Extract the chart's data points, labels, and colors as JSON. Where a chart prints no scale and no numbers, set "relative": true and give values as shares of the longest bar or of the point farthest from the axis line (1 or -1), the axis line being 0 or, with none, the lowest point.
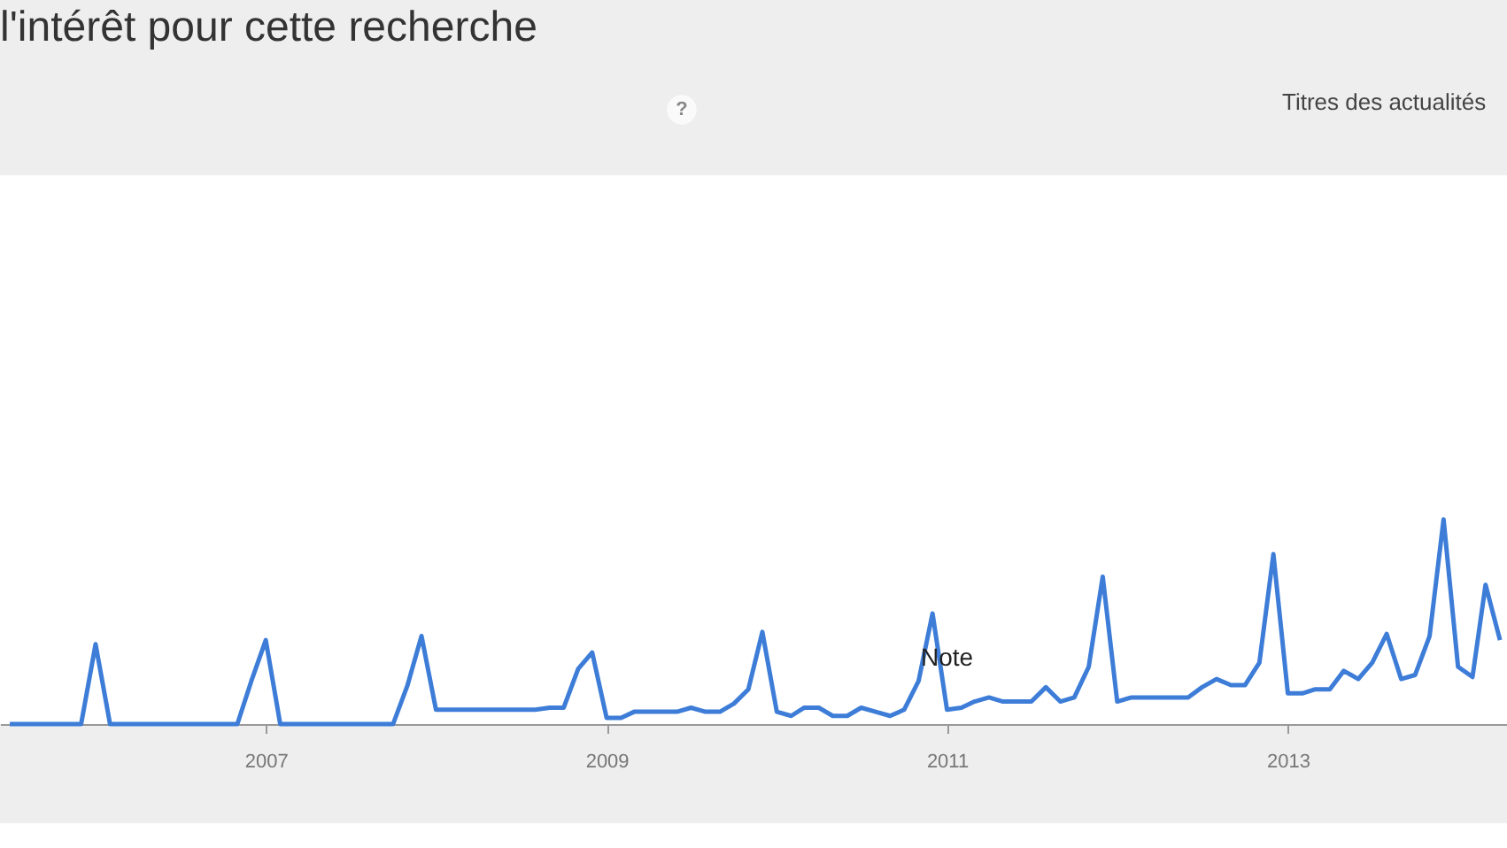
{
  "chart_data": {
    "type": "line",
    "title": "l'intérêt pour cette recherche",
    "relative": true,
    "annotations": [
      "?",
      "Titres des actualités",
      {
        "text": "Note",
        "x": "2011-01",
        "y": 0.07
      }
    ],
    "xlim": [
      "2005-06-10",
      "2014-04-16"
    ],
    "xticks": [
      "2007",
      "2009",
      "2011",
      "2013"
    ],
    "x": [
      "2005-07",
      "2005-08",
      "2005-09",
      "2005-10",
      "2005-11",
      "2005-12",
      "2006-01",
      "2006-02",
      "2006-03",
      "2006-04",
      "2006-05",
      "2006-06",
      "2006-07",
      "2006-08",
      "2006-09",
      "2006-10",
      "2006-11",
      "2006-12",
      "2007-01",
      "2007-02",
      "2007-03",
      "2007-04",
      "2007-05",
      "2007-06",
      "2007-07",
      "2007-08",
      "2007-09",
      "2007-10",
      "2007-11",
      "2007-12",
      "2008-01",
      "2008-02",
      "2008-03",
      "2008-04",
      "2008-05",
      "2008-06",
      "2008-07",
      "2008-08",
      "2008-09",
      "2008-10",
      "2008-11",
      "2008-12",
      "2009-01",
      "2009-02",
      "2009-03",
      "2009-04",
      "2009-05",
      "2009-06",
      "2009-07",
      "2009-08",
      "2009-09",
      "2009-10",
      "2009-11",
      "2009-12",
      "2010-01",
      "2010-02",
      "2010-03",
      "2010-04",
      "2010-05",
      "2010-06",
      "2010-07",
      "2010-08",
      "2010-09",
      "2010-10",
      "2010-11",
      "2010-12",
      "2011-01",
      "2011-02",
      "2011-03",
      "2011-04",
      "2011-05",
      "2011-06",
      "2011-07",
      "2011-08",
      "2011-09",
      "2011-10",
      "2011-11",
      "2011-12",
      "2012-01",
      "2012-02",
      "2012-03",
      "2012-04",
      "2012-05",
      "2012-06",
      "2012-07",
      "2012-08",
      "2012-09",
      "2012-10",
      "2012-11",
      "2012-12",
      "2013-01",
      "2013-02",
      "2013-03",
      "2013-04",
      "2013-05",
      "2013-06",
      "2013-07",
      "2013-08",
      "2013-09",
      "2013-10",
      "2013-11",
      "2013-12",
      "2014-01",
      "2014-02",
      "2014-03",
      "2014-04"
    ],
    "series": [
      {
        "color": "#3d7dd8",
        "values": [
          0,
          0,
          0,
          0,
          0,
          0,
          0.39,
          0,
          0,
          0,
          0,
          0,
          0,
          0,
          0,
          0,
          0,
          0.21,
          0.41,
          0,
          0,
          0,
          0,
          0,
          0,
          0,
          0,
          0,
          0.19,
          0.43,
          0.07,
          0.07,
          0.07,
          0.07,
          0.07,
          0.07,
          0.07,
          0.07,
          0.08,
          0.08,
          0.27,
          0.35,
          0.03,
          0.03,
          0.06,
          0.06,
          0.06,
          0.06,
          0.08,
          0.06,
          0.06,
          0.1,
          0.17,
          0.45,
          0.06,
          0.04,
          0.08,
          0.08,
          0.04,
          0.04,
          0.08,
          0.06,
          0.04,
          0.07,
          0.21,
          0.54,
          0.07,
          0.08,
          0.11,
          0.13,
          0.11,
          0.11,
          0.11,
          0.18,
          0.11,
          0.13,
          0.28,
          0.72,
          0.11,
          0.13,
          0.13,
          0.13,
          0.13,
          0.13,
          0.18,
          0.22,
          0.19,
          0.19,
          0.3,
          0.83,
          0.15,
          0.15,
          0.17,
          0.17,
          0.26,
          0.22,
          0.3,
          0.44,
          0.22,
          0.24,
          0.43,
          1,
          0.28,
          0.23,
          0.68,
          0.41
        ]
      }
    ]
  }
}
